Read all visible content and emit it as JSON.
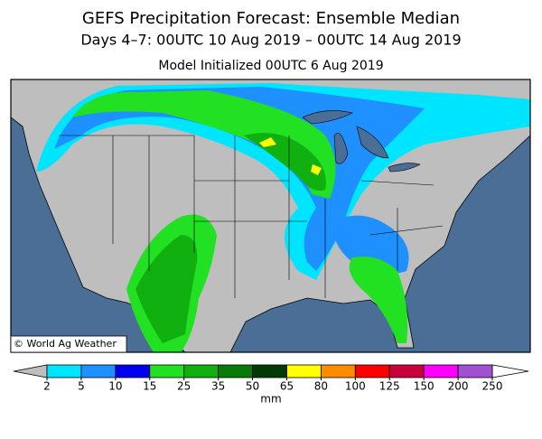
{
  "header": {
    "title": "GEFS Precipitation Forecast: Ensemble Median",
    "subtitle": "Days 4–7: 00UTC 10 Aug 2019 – 00UTC 14 Aug 2019",
    "initialized": "Model Initialized 00UTC 6 Aug 2019"
  },
  "credit": "© World Ag Weather",
  "colorbar": {
    "levels": [
      2,
      5,
      10,
      15,
      25,
      35,
      50,
      65,
      80,
      100,
      125,
      150,
      200,
      250
    ],
    "colors": [
      "#00e5ff",
      "#1e90ff",
      "#0000ee",
      "#22e022",
      "#10b010",
      "#087a08",
      "#033a03",
      "#ffff00",
      "#ff8c00",
      "#ff0000",
      "#c8003c",
      "#ff00ff",
      "#a050d0"
    ],
    "under_color": "#bebebe",
    "over_color": "#ffffff",
    "unit": "mm"
  }
}
